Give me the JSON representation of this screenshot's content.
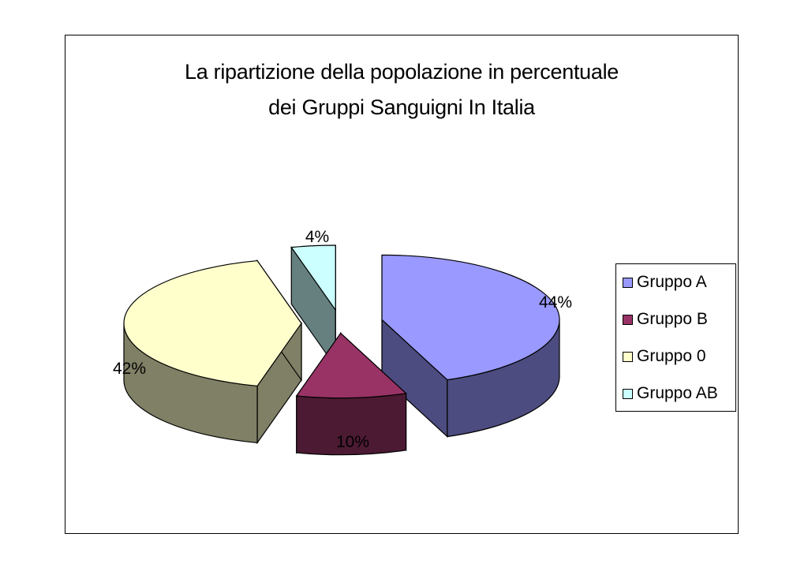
{
  "chart_data": {
    "type": "pie",
    "title_lines": [
      "La ripartizione della popolazione in percentuale",
      "dei Gruppi Sanguigni In Italia"
    ],
    "slices": [
      {
        "name": "Gruppo A",
        "value": 44,
        "label": "44%",
        "color": "#9999ff",
        "side_color": "#4c4c80"
      },
      {
        "name": "Gruppo B",
        "value": 10,
        "label": "10%",
        "color": "#993366",
        "side_color": "#4c1a33"
      },
      {
        "name": "Gruppo 0",
        "value": 42,
        "label": "42%",
        "color": "#ffffcc",
        "side_color": "#808066"
      },
      {
        "name": "Gruppo AB",
        "value": 4,
        "label": "4%",
        "color": "#ccffff",
        "side_color": "#668080"
      }
    ],
    "style": "3d-exploded",
    "legend_position": "right"
  }
}
